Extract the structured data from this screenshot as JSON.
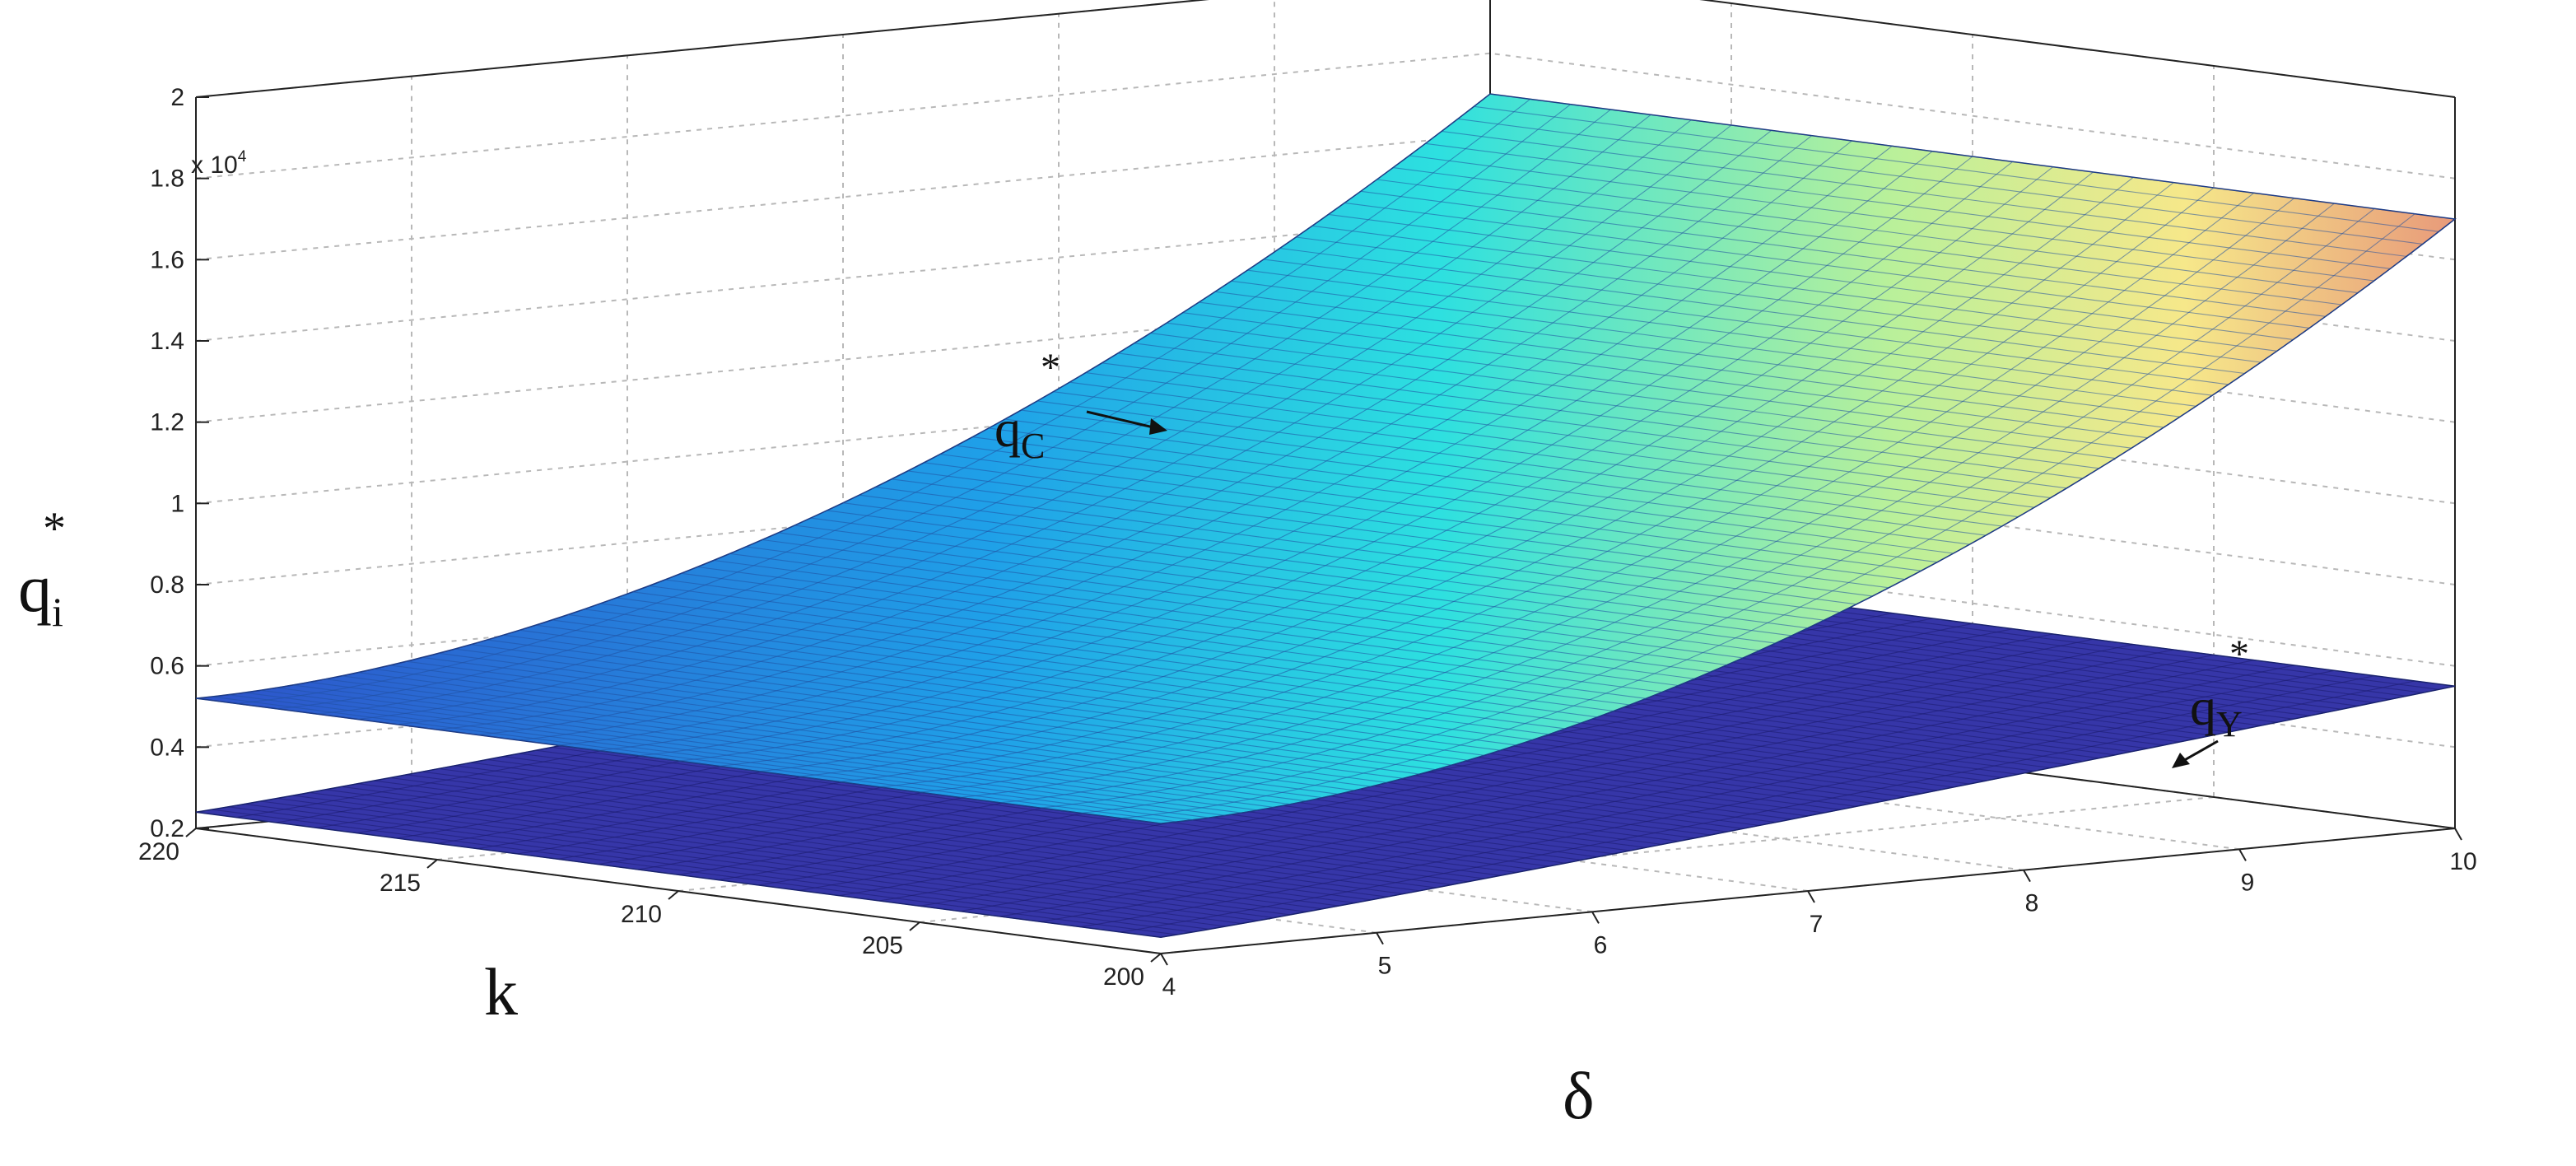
{
  "chart_data": {
    "type": "surface",
    "title": "",
    "xlabel": "δ",
    "ylabel": "k",
    "zlabel_main": "q",
    "zlabel_sub": "i",
    "zlabel_sup": "*",
    "z_multiplier": "x 10",
    "z_multiplier_exp": "4",
    "delta_range": [
      4,
      10
    ],
    "k_range": [
      200,
      220
    ],
    "zlim": [
      0.2,
      2
    ],
    "delta_ticks": [
      4,
      5,
      6,
      7,
      8,
      9,
      10
    ],
    "k_ticks": [
      200,
      205,
      210,
      215,
      220
    ],
    "z_ticks": [
      0.2,
      0.4,
      0.6,
      0.8,
      1,
      1.2,
      1.4,
      1.6,
      1.8,
      2
    ],
    "grid": true,
    "colormap": "jet",
    "series": [
      {
        "name_main": "q",
        "name_sub": "C",
        "name_sup": "*",
        "z_at_delta_min": 0.52,
        "z_at_delta_max": 1.7,
        "shape": "convex"
      },
      {
        "name_main": "q",
        "name_sub": "Y",
        "name_sup": "*",
        "z_at_delta_min": 0.24,
        "z_at_delta_max": 0.55,
        "shape": "near-linear"
      }
    ]
  }
}
